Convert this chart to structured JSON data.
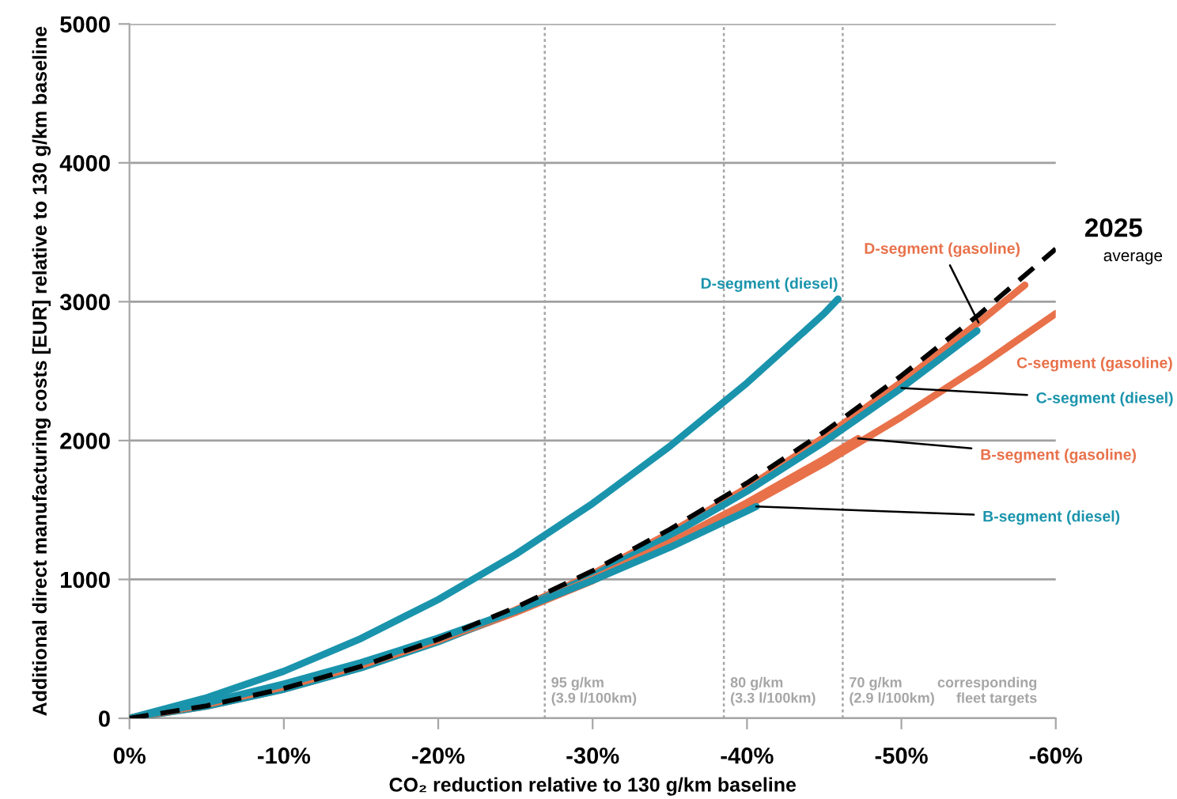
{
  "chart_data": {
    "type": "line",
    "xlabel": "CO₂ reduction relative to 130 g/km baseline",
    "ylabel": "Additional direct manufacturing costs [EUR] relative to 130 g/km baseline",
    "xlim": [
      0,
      -60
    ],
    "ylim": [
      0,
      5000
    ],
    "xticks": [
      {
        "value": 0,
        "label": "0%"
      },
      {
        "value": -10,
        "label": "-10%"
      },
      {
        "value": -20,
        "label": "-20%"
      },
      {
        "value": -30,
        "label": "-30%"
      },
      {
        "value": -40,
        "label": "-40%"
      },
      {
        "value": -50,
        "label": "-50%"
      },
      {
        "value": -60,
        "label": "-60%"
      }
    ],
    "yticks": [
      0,
      1000,
      2000,
      3000,
      4000,
      5000
    ],
    "grid": "y",
    "legend": false,
    "marker": "none",
    "series": [
      {
        "name": "D-segment (diesel)",
        "color": "#1a94ac",
        "line_style": "solid",
        "x": [
          0,
          -5,
          -10,
          -15,
          -20,
          -25,
          -30,
          -35,
          -40,
          -45,
          -45.9
        ],
        "values": [
          0,
          148,
          339,
          575,
          855,
          1179,
          1547,
          1959,
          2415,
          2915,
          3020
        ]
      },
      {
        "name": "D-segment (gasoline)",
        "color": "#e8714a",
        "line_style": "solid",
        "x": [
          0,
          -5,
          -10,
          -15,
          -20,
          -25,
          -30,
          -35,
          -40,
          -45,
          -50,
          -55,
          -58
        ],
        "values": [
          0,
          88,
          210,
          366,
          556,
          780,
          1040,
          1335,
          1660,
          2025,
          2420,
          2850,
          3120
        ]
      },
      {
        "name": "C-segment (gasoline)",
        "color": "#e8714a",
        "line_style": "solid",
        "x": [
          0,
          -5,
          -10,
          -15,
          -20,
          -25,
          -30,
          -35,
          -40,
          -45,
          -50,
          -55,
          -60
        ],
        "values": [
          0,
          100,
          227,
          379,
          557,
          761,
          991,
          1247,
          1529,
          1836,
          2170,
          2529,
          2915
        ]
      },
      {
        "name": "C-segment (diesel)",
        "color": "#1a94ac",
        "line_style": "solid",
        "x": [
          0,
          -5,
          -10,
          -15,
          -20,
          -25,
          -30,
          -35,
          -40,
          -45,
          -50,
          -54.9
        ],
        "values": [
          0,
          88,
          209,
          363,
          551,
          772,
          1026,
          1314,
          1635,
          1990,
          2378,
          2790
        ]
      },
      {
        "name": "B-segment (gasoline)",
        "color": "#e8714a",
        "line_style": "solid",
        "x": [
          0,
          -5,
          -10,
          -15,
          -20,
          -25,
          -30,
          -35,
          -40,
          -45,
          -47.2
        ],
        "values": [
          0,
          100,
          227,
          381,
          562,
          770,
          1003,
          1265,
          1553,
          1868,
          2015
        ]
      },
      {
        "name": "B-segment (diesel)",
        "color": "#1a94ac",
        "line_style": "solid",
        "x": [
          0,
          -5,
          -10,
          -15,
          -20,
          -25,
          -30,
          -35,
          -40,
          -40.6
        ],
        "values": [
          0,
          112,
          247,
          401,
          578,
          774,
          993,
          1231,
          1492,
          1525
        ]
      },
      {
        "name": "2025\naverage",
        "color": "#000000",
        "line_style": "dashed",
        "x": [
          0,
          -5,
          -10,
          -15,
          -20,
          -25,
          -30,
          -35,
          -40,
          -45,
          -50,
          -55,
          -60
        ],
        "values": [
          0,
          90,
          215,
          374,
          569,
          798,
          1062,
          1361,
          1695,
          2063,
          2467,
          2905,
          3380
        ]
      }
    ],
    "ref_lines": [
      {
        "axis": "x",
        "value": -26.9,
        "label": "95 g/km\n(3.9 l/100km)",
        "color": "#a6a6a6",
        "line_style": "dotted"
      },
      {
        "axis": "x",
        "value": -38.5,
        "label": "80 g/km\n(3.3 l/100km)",
        "color": "#a6a6a6",
        "line_style": "dotted"
      },
      {
        "axis": "x",
        "value": -46.2,
        "label": "70 g/km\n(2.9 l/100km)",
        "color": "#a6a6a6",
        "line_style": "dotted"
      }
    ],
    "annotations": [
      "corresponding\nfleet targets"
    ]
  }
}
